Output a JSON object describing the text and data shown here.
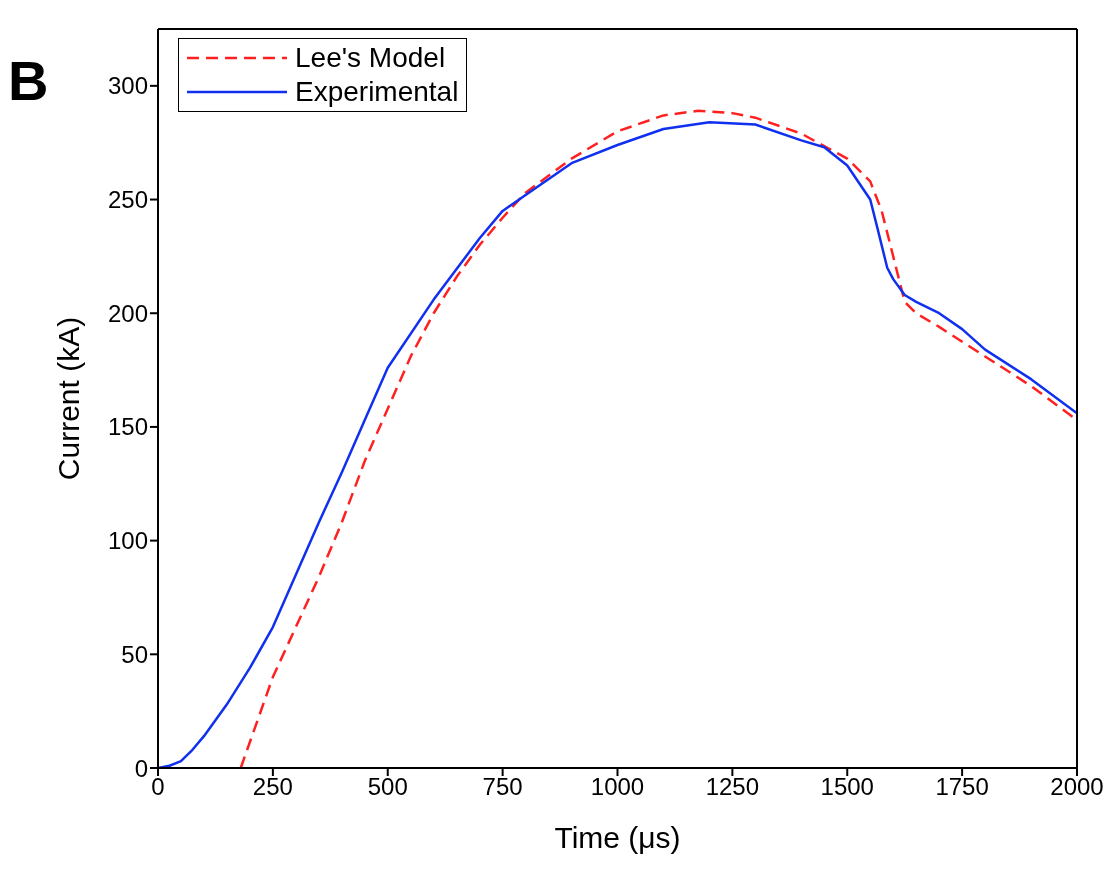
{
  "chart_data": {
    "type": "line",
    "xlabel": "Time (μs)",
    "ylabel": "Current (kA)",
    "annotations": [
      "B"
    ],
    "xlim": [
      0,
      2000
    ],
    "xticks": [
      0,
      250,
      500,
      750,
      1000,
      1250,
      1500,
      1750,
      2000
    ],
    "ylim": [
      0,
      325
    ],
    "yticks": [
      0,
      50,
      100,
      150,
      200,
      250,
      300
    ],
    "legend": "top left",
    "marker": "none",
    "series": [
      {
        "name": "Lee's Model",
        "color": "#ff2020",
        "line_style": "dashed",
        "x": [
          180,
          250,
          300,
          350,
          400,
          450,
          500,
          550,
          600,
          650,
          700,
          750,
          800,
          900,
          1000,
          1100,
          1175,
          1250,
          1300,
          1400,
          1500,
          1550,
          1575,
          1600,
          1625,
          1650,
          1700,
          1800,
          1900,
          2000
        ],
        "values": [
          0,
          40,
          62,
          84,
          108,
          135,
          158,
          181,
          200,
          216,
          230,
          242,
          253,
          268,
          280,
          287,
          289,
          288,
          286,
          279,
          268,
          258,
          245,
          225,
          205,
          200,
          194,
          181,
          168,
          153
        ]
      },
      {
        "name": "Experimental",
        "color": "#1030f0",
        "line_style": "solid",
        "x": [
          0,
          25,
          50,
          75,
          100,
          150,
          200,
          250,
          300,
          350,
          400,
          450,
          500,
          600,
          700,
          750,
          800,
          900,
          1000,
          1100,
          1200,
          1300,
          1400,
          1450,
          1500,
          1550,
          1565,
          1587,
          1600,
          1625,
          1650,
          1700,
          1750,
          1800,
          1900,
          2000
        ],
        "values": [
          0,
          1,
          3,
          8,
          14,
          28,
          44,
          62,
          85,
          108,
          130,
          153,
          176,
          206,
          233,
          245,
          252,
          266,
          274,
          281,
          284,
          283,
          276,
          273,
          265,
          250,
          238,
          220,
          215,
          208,
          205,
          200,
          193,
          184,
          171,
          156
        ]
      }
    ]
  }
}
